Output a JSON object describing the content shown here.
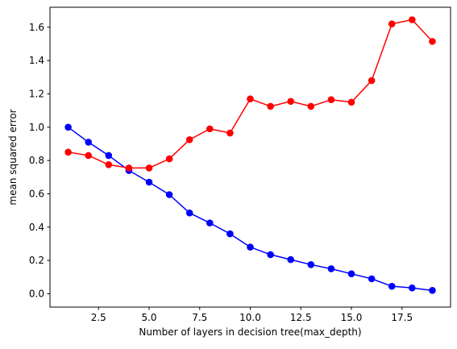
{
  "chart_data": {
    "type": "line",
    "title": "",
    "xlabel": "Number of layers in decision tree(max_depth)",
    "ylabel": "mean squared error",
    "xlim": [
      0.1,
      19.9
    ],
    "ylim": [
      -0.08,
      1.72
    ],
    "x_ticks": [
      2.5,
      5.0,
      7.5,
      10.0,
      12.5,
      15.0,
      17.5
    ],
    "x_tick_labels": [
      "2.5",
      "5.0",
      "7.5",
      "10.0",
      "12.5",
      "15.0",
      "17.5"
    ],
    "y_ticks": [
      0.0,
      0.2,
      0.4,
      0.6,
      0.8,
      1.0,
      1.2,
      1.4,
      1.6
    ],
    "y_tick_labels": [
      "0.0",
      "0.2",
      "0.4",
      "0.6",
      "0.8",
      "1.0",
      "1.2",
      "1.4",
      "1.6"
    ],
    "grid": false,
    "legend": "none",
    "x": [
      1,
      2,
      3,
      4,
      5,
      6,
      7,
      8,
      9,
      10,
      11,
      12,
      13,
      14,
      15,
      16,
      17,
      18,
      19
    ],
    "series": [
      {
        "color": "#0000ff",
        "marker": "circle",
        "values": [
          1.0,
          0.91,
          0.83,
          0.74,
          0.67,
          0.595,
          0.485,
          0.425,
          0.36,
          0.28,
          0.235,
          0.205,
          0.175,
          0.15,
          0.12,
          0.09,
          0.045,
          0.035,
          0.02
        ]
      },
      {
        "color": "#ff0000",
        "marker": "circle",
        "values": [
          0.85,
          0.83,
          0.775,
          0.755,
          0.755,
          0.81,
          0.925,
          0.99,
          0.965,
          1.17,
          1.125,
          1.155,
          1.125,
          1.165,
          1.15,
          1.28,
          1.62,
          1.645,
          1.515
        ]
      }
    ]
  }
}
